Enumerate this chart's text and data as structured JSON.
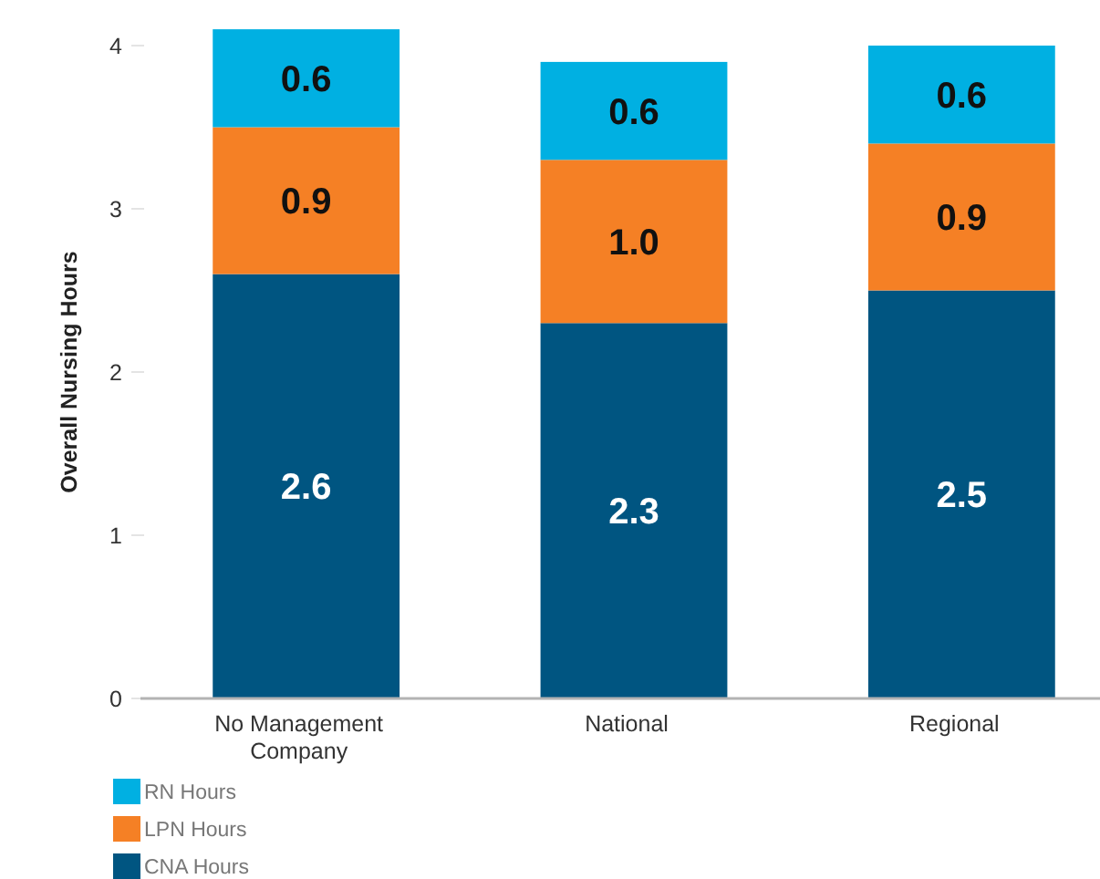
{
  "chart_data": {
    "type": "bar",
    "stacked": true,
    "ylabel": "Overall Nursing Hours",
    "categories": [
      "No Management Company",
      "National",
      "Regional"
    ],
    "series": [
      {
        "name": "CNA Hours",
        "color": "#005581",
        "values": [
          2.6,
          2.3,
          2.5
        ],
        "value_labels": [
          "2.6",
          "2.3",
          "2.5"
        ]
      },
      {
        "name": "LPN Hours",
        "color": "#f58025",
        "values": [
          0.9,
          1.0,
          0.9
        ],
        "value_labels": [
          "0.9",
          "1.0",
          "0.9"
        ]
      },
      {
        "name": "RN Hours",
        "color": "#00b0e2",
        "values": [
          0.6,
          0.6,
          0.6
        ],
        "value_labels": [
          "0.6",
          "0.6",
          "0.6"
        ]
      }
    ],
    "ylim": [
      0,
      4.1
    ],
    "yticks": [
      0,
      1,
      2,
      3,
      4
    ],
    "legend": "bottom left"
  }
}
